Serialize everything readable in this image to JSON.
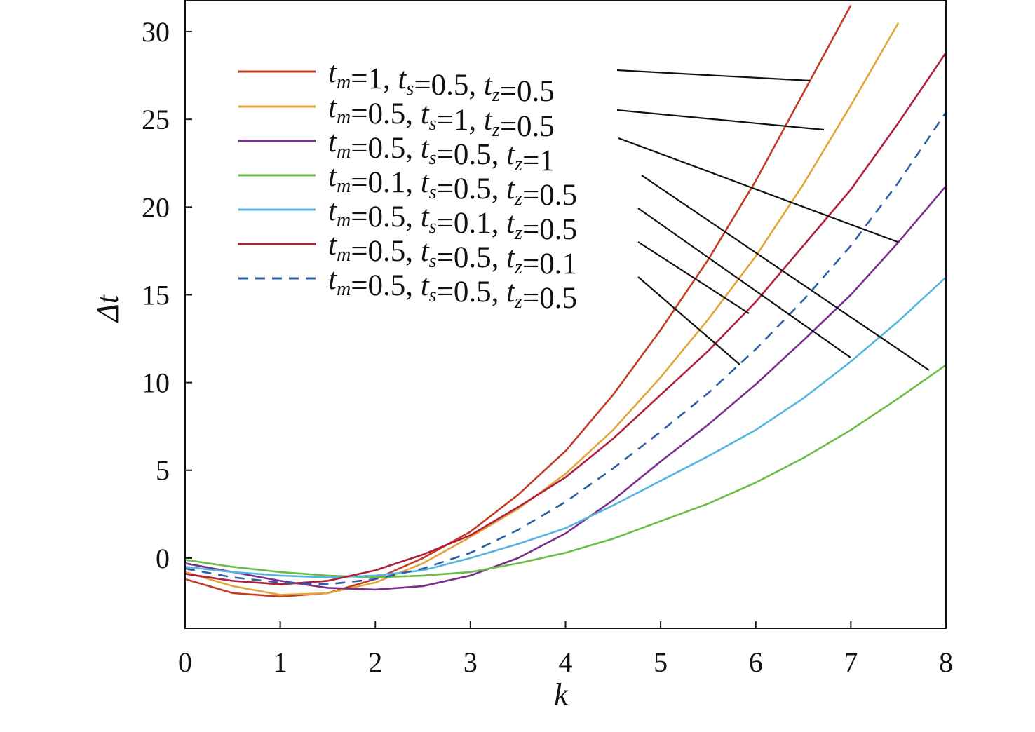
{
  "chart_data": {
    "type": "line",
    "xlabel": "k",
    "ylabel": "Δt",
    "x": [
      0,
      0.5,
      1,
      1.5,
      2,
      2.5,
      3,
      3.5,
      4,
      4.5,
      5,
      5.5,
      6,
      6.5,
      7,
      7.5,
      8
    ],
    "series": [
      {
        "name": "tm=1, ts=0.5, tz=0.5",
        "color": "#c23b22",
        "linestyle": "solid",
        "values": [
          -1.2,
          -2.0,
          -2.2,
          -2.0,
          -1.2,
          0,
          1.5,
          3.6,
          6.1,
          9.3,
          13,
          17,
          21.5,
          26.5,
          31.5,
          null,
          null
        ]
      },
      {
        "name": "tm=0.5, ts=1, tz=0.5",
        "color": "#e2a53c",
        "linestyle": "solid",
        "values": [
          -0.8,
          -1.6,
          -2.1,
          -2.0,
          -1.4,
          -0.3,
          1.2,
          2.8,
          4.8,
          7.3,
          10.3,
          13.6,
          17.2,
          21.3,
          25.8,
          30.5,
          null
        ]
      },
      {
        "name": "tm=0.5, ts=0.5, tz=1",
        "color": "#7a2f8f",
        "linestyle": "solid",
        "values": [
          -0.3,
          -0.8,
          -1.3,
          -1.7,
          -1.8,
          -1.6,
          -1.0,
          0,
          1.4,
          3.3,
          5.5,
          7.6,
          9.9,
          12.4,
          15,
          18,
          21.2
        ]
      },
      {
        "name": "tm=0.1, ts=0.5, tz=0.5",
        "color": "#6cbd45",
        "linestyle": "solid",
        "values": [
          -0.1,
          -0.5,
          -0.8,
          -1.0,
          -1.1,
          -1.0,
          -0.8,
          -0.3,
          0.3,
          1.1,
          2.1,
          3.1,
          4.3,
          5.7,
          7.3,
          9.1,
          11
        ]
      },
      {
        "name": "tm=0.5, ts=0.1, tz=0.5",
        "color": "#55b4e0",
        "linestyle": "solid",
        "values": [
          -0.5,
          -0.8,
          -1.0,
          -1.1,
          -1.0,
          -0.7,
          0,
          0.8,
          1.7,
          3,
          4.4,
          5.8,
          7.3,
          9.1,
          11.2,
          13.5,
          16
        ]
      },
      {
        "name": "tm=0.5, ts=0.5, tz=0.1",
        "color": "#b0203a",
        "linestyle": "solid",
        "values": [
          -0.9,
          -1.3,
          -1.5,
          -1.3,
          -0.7,
          0.2,
          1.3,
          2.9,
          4.6,
          6.8,
          9.3,
          11.8,
          14.6,
          17.8,
          21,
          24.8,
          28.8
        ]
      },
      {
        "name": "tm=0.5, ts=0.5, tz=0.5",
        "color": "#2c5fa8",
        "linestyle": "dashed",
        "values": [
          -0.6,
          -1.1,
          -1.4,
          -1.5,
          -1.2,
          -0.6,
          0.3,
          1.6,
          3.2,
          5.1,
          7.2,
          9.4,
          11.9,
          14.7,
          17.8,
          21.4,
          25.4
        ]
      }
    ],
    "xlim": [
      0,
      8
    ],
    "xticks": [
      0,
      1,
      2,
      3,
      4,
      5,
      6,
      7,
      8
    ],
    "ylim": [
      -4,
      31.8
    ],
    "yticks": [
      0,
      5,
      10,
      15,
      20,
      25,
      30
    ],
    "grid": false
  }
}
